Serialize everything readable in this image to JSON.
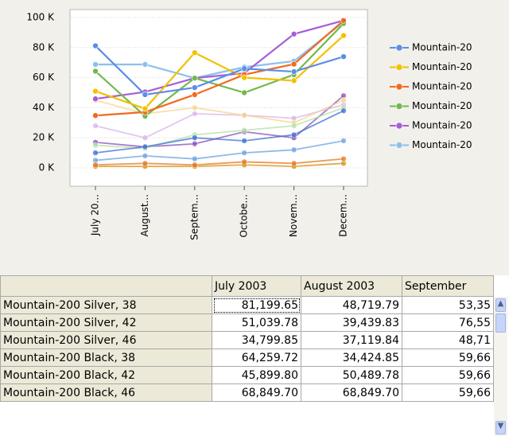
{
  "chart_data": {
    "type": "line",
    "categories": [
      "July 20...",
      "August...",
      "Septem...",
      "Octobe...",
      "Novem...",
      "Decem..."
    ],
    "ylim": [
      0,
      100
    ],
    "yticks": [
      {
        "value": 0,
        "label": "0 K"
      },
      {
        "value": 20,
        "label": "20 K"
      },
      {
        "value": 40,
        "label": "40 K"
      },
      {
        "value": 60,
        "label": "60 K"
      },
      {
        "value": 80,
        "label": "80 K"
      },
      {
        "value": 100,
        "label": "100 K"
      }
    ],
    "grid": true,
    "legend": "right",
    "series": [
      {
        "name": "Mountain-20",
        "color": "#5b8ee6",
        "values": [
          81.2,
          48.7,
          53.4,
          66,
          64,
          74
        ]
      },
      {
        "name": "Mountain-20",
        "color": "#f2c100",
        "values": [
          51,
          39.4,
          76.6,
          60,
          58,
          88
        ]
      },
      {
        "name": "Mountain-20",
        "color": "#f06a1e",
        "values": [
          34.8,
          37.1,
          48.7,
          62,
          69,
          98
        ]
      },
      {
        "name": "Mountain-20",
        "color": "#72b84d",
        "values": [
          64.3,
          34.4,
          59.7,
          50,
          62,
          96
        ]
      },
      {
        "name": "Mountain-20",
        "color": "#a65fd4",
        "values": [
          45.9,
          50.5,
          59.7,
          63,
          89,
          98
        ]
      },
      {
        "name": "Mountain-20",
        "color": "#8cc0ec",
        "values": [
          68.8,
          68.8,
          59.7,
          67,
          71,
          97
        ]
      },
      {
        "color": "#3a6fd0",
        "values": [
          10,
          14,
          20,
          18,
          22,
          38
        ]
      },
      {
        "color": "#e07a20",
        "values": [
          2,
          3,
          2,
          4,
          3,
          6
        ]
      },
      {
        "color": "#b7e0a8",
        "values": [
          15,
          13,
          22,
          25,
          28,
          40
        ]
      },
      {
        "color": "#f5d48a",
        "values": [
          45,
          36,
          40,
          35,
          30,
          45
        ]
      },
      {
        "color": "#d7b4ec",
        "values": [
          28,
          20,
          36,
          35,
          33,
          42
        ]
      },
      {
        "color": "#6aa3e0",
        "values": [
          5,
          8,
          6,
          10,
          12,
          18
        ]
      },
      {
        "color": "#8a4fb8",
        "values": [
          17,
          14,
          16,
          24,
          20,
          48
        ]
      },
      {
        "color": "#d98e10",
        "values": [
          1,
          1,
          1,
          2,
          1,
          3
        ]
      }
    ]
  },
  "table": {
    "header": [
      "July 2003",
      "August 2003",
      "September"
    ],
    "rows": [
      [
        "Mountain-200 Silver, 38",
        "81,199.65",
        "48,719.79",
        "53,35"
      ],
      [
        "Mountain-200 Silver, 42",
        "51,039.78",
        "39,439.83",
        "76,55"
      ],
      [
        "Mountain-200 Silver, 46",
        "34,799.85",
        "37,119.84",
        "48,71"
      ],
      [
        "Mountain-200 Black, 38",
        "64,259.72",
        "34,424.85",
        "59,66"
      ],
      [
        "Mountain-200 Black, 42",
        "45,899.80",
        "50,489.78",
        "59,66"
      ],
      [
        "Mountain-200 Black, 46",
        "68,849.70",
        "68,849.70",
        "59,66"
      ]
    ]
  }
}
